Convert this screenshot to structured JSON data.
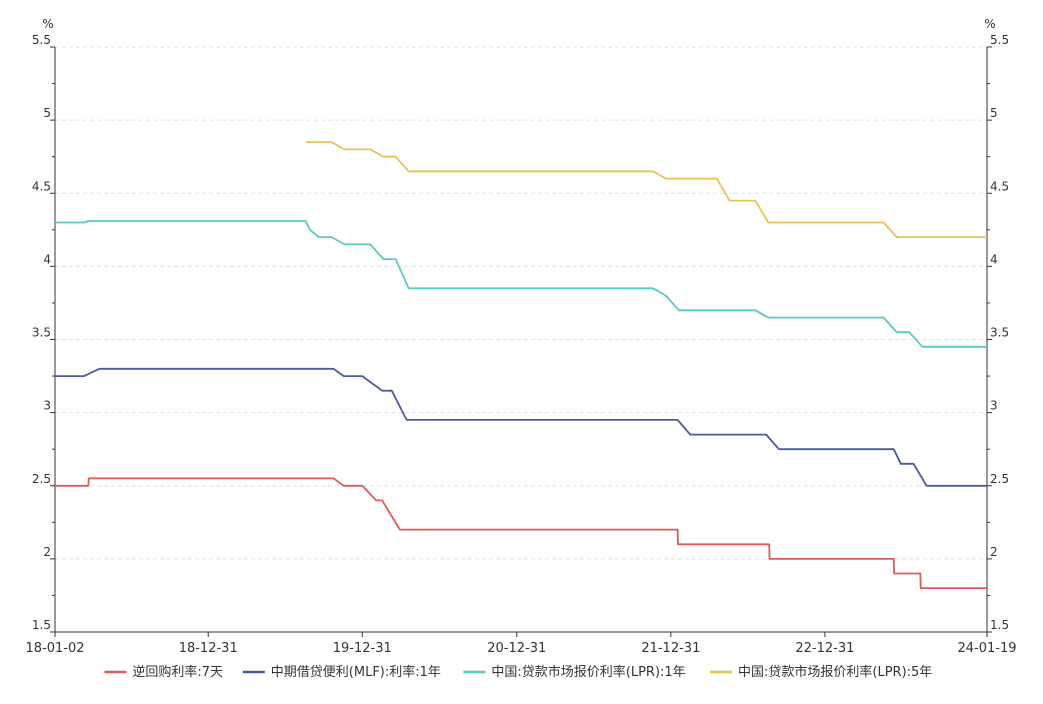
{
  "chart_data": {
    "type": "line",
    "y_unit_left": "%",
    "y_unit_right": "%",
    "ylim": [
      1.5,
      5.5
    ],
    "yticks": [
      "1.5",
      "2",
      "2.5",
      "3",
      "3.5",
      "4",
      "4.5",
      "5",
      "5.5"
    ],
    "xlim": [
      "2018-01-02",
      "2024-01-19"
    ],
    "xticks": [
      {
        "date": "2018-01-02",
        "label": "18-01-02"
      },
      {
        "date": "2018-12-31",
        "label": "18-12-31"
      },
      {
        "date": "2019-12-31",
        "label": "19-12-31"
      },
      {
        "date": "2020-12-31",
        "label": "20-12-31"
      },
      {
        "date": "2021-12-31",
        "label": "21-12-31"
      },
      {
        "date": "2022-12-31",
        "label": "22-12-31"
      },
      {
        "date": "2024-01-19",
        "label": "24-01-19"
      }
    ],
    "grid": true,
    "legend_position": "bottom",
    "series": [
      {
        "name": "逆回购利率:7天",
        "color": "#e05a5a",
        "points": [
          [
            "2018-01-02",
            2.5
          ],
          [
            "2018-03-22",
            2.5
          ],
          [
            "2018-03-23",
            2.55
          ],
          [
            "2019-10-24",
            2.55
          ],
          [
            "2019-11-17",
            2.5
          ],
          [
            "2019-12-31",
            2.5
          ],
          [
            "2020-02-02",
            2.4
          ],
          [
            "2020-02-16",
            2.4
          ],
          [
            "2020-03-29",
            2.2
          ],
          [
            "2022-01-16",
            2.2
          ],
          [
            "2022-01-17",
            2.1
          ],
          [
            "2022-08-21",
            2.1
          ],
          [
            "2022-08-22",
            2.0
          ],
          [
            "2023-06-12",
            2.0
          ],
          [
            "2023-06-13",
            1.9
          ],
          [
            "2023-08-14",
            1.9
          ],
          [
            "2023-08-15",
            1.8
          ],
          [
            "2024-01-19",
            1.8
          ]
        ]
      },
      {
        "name": "中期借贷便利(MLF):利率:1年",
        "color": "#4a5a9e",
        "points": [
          [
            "2018-01-02",
            3.25
          ],
          [
            "2018-03-12",
            3.25
          ],
          [
            "2018-04-17",
            3.3
          ],
          [
            "2019-10-24",
            3.3
          ],
          [
            "2019-11-17",
            3.25
          ],
          [
            "2019-12-31",
            3.25
          ],
          [
            "2020-02-16",
            3.15
          ],
          [
            "2020-03-10",
            3.15
          ],
          [
            "2020-04-14",
            2.95
          ],
          [
            "2022-01-16",
            2.95
          ],
          [
            "2022-02-15",
            2.85
          ],
          [
            "2022-08-14",
            2.85
          ],
          [
            "2022-09-13",
            2.75
          ],
          [
            "2023-06-12",
            2.75
          ],
          [
            "2023-06-29",
            2.65
          ],
          [
            "2023-07-29",
            2.65
          ],
          [
            "2023-08-29",
            2.5
          ],
          [
            "2024-01-19",
            2.5
          ]
        ]
      },
      {
        "name": "中国:贷款市场报价利率(LPR):1年",
        "color": "#5ac8c8",
        "points": [
          [
            "2018-01-02",
            4.3
          ],
          [
            "2018-03-12",
            4.3
          ],
          [
            "2018-03-22",
            4.31
          ],
          [
            "2019-08-19",
            4.31
          ],
          [
            "2019-08-29",
            4.25
          ],
          [
            "2019-09-19",
            4.2
          ],
          [
            "2019-10-19",
            4.2
          ],
          [
            "2019-11-19",
            4.15
          ],
          [
            "2020-01-19",
            4.15
          ],
          [
            "2020-02-19",
            4.05
          ],
          [
            "2020-03-19",
            4.05
          ],
          [
            "2020-04-19",
            3.85
          ],
          [
            "2021-11-19",
            3.85
          ],
          [
            "2021-12-19",
            3.8
          ],
          [
            "2022-01-19",
            3.7
          ],
          [
            "2022-07-19",
            3.7
          ],
          [
            "2022-08-19",
            3.65
          ],
          [
            "2023-05-19",
            3.65
          ],
          [
            "2023-06-19",
            3.55
          ],
          [
            "2023-07-19",
            3.55
          ],
          [
            "2023-08-19",
            3.45
          ],
          [
            "2024-01-19",
            3.45
          ]
        ]
      },
      {
        "name": "中国:贷款市场报价利率(LPR):5年",
        "color": "#e8c350",
        "points": [
          [
            "2019-08-20",
            4.85
          ],
          [
            "2019-10-19",
            4.85
          ],
          [
            "2019-11-19",
            4.8
          ],
          [
            "2020-01-19",
            4.8
          ],
          [
            "2020-02-19",
            4.75
          ],
          [
            "2020-03-19",
            4.75
          ],
          [
            "2020-04-19",
            4.65
          ],
          [
            "2021-11-19",
            4.65
          ],
          [
            "2021-12-19",
            4.6
          ],
          [
            "2022-04-19",
            4.6
          ],
          [
            "2022-05-19",
            4.45
          ],
          [
            "2022-07-19",
            4.45
          ],
          [
            "2022-08-19",
            4.3
          ],
          [
            "2023-05-19",
            4.3
          ],
          [
            "2023-06-19",
            4.2
          ],
          [
            "2024-01-19",
            4.2
          ]
        ]
      }
    ]
  }
}
